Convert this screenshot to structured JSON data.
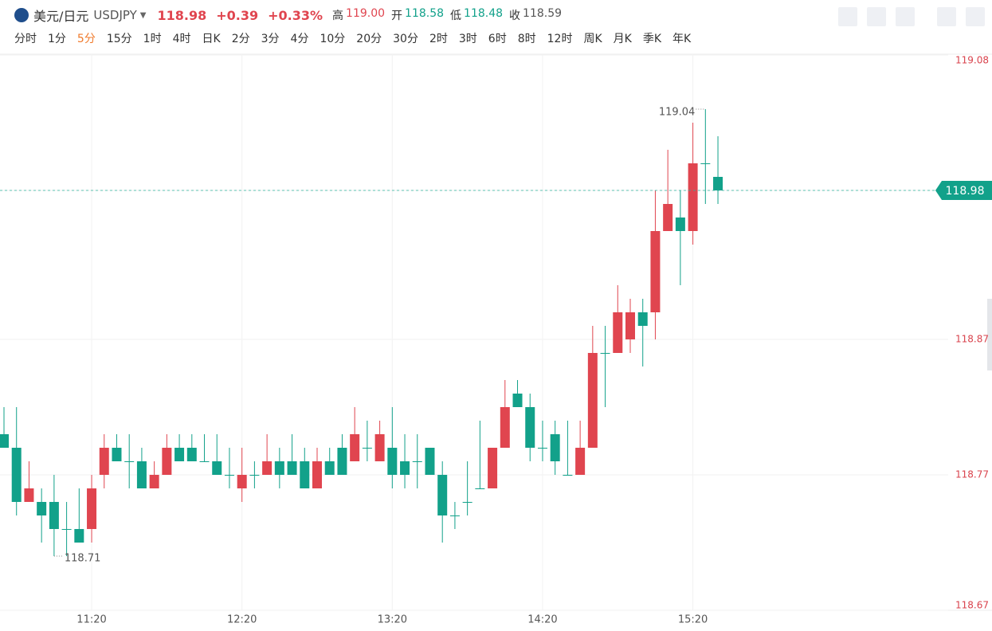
{
  "header": {
    "name": "美元/日元",
    "symbol": "USDJPY",
    "price": "118.98",
    "change": "+0.39",
    "change_pct": "+0.33%",
    "stats": [
      {
        "label": "高",
        "value": "119.00",
        "color": "#e0454f"
      },
      {
        "label": "开",
        "value": "118.58",
        "color": "#12a18a"
      },
      {
        "label": "低",
        "value": "118.48",
        "color": "#12a18a"
      },
      {
        "label": "收",
        "value": "118.59",
        "color": "#555555"
      }
    ]
  },
  "periods": [
    "分时",
    "1分",
    "5分",
    "15分",
    "1时",
    "4时",
    "日K",
    "2分",
    "3分",
    "4分",
    "10分",
    "20分",
    "30分",
    "2时",
    "3时",
    "6时",
    "8时",
    "12时",
    "周K",
    "月K",
    "季K",
    "年K"
  ],
  "active_period": "5分",
  "chart_data": {
    "type": "candlestick",
    "up_color": "#e0454f",
    "down_color": "#12a18a",
    "categories": [
      null,
      null,
      null,
      null,
      null,
      null,
      null,
      "11:20",
      null,
      null,
      null,
      null,
      null,
      null,
      null,
      null,
      null,
      null,
      null,
      "12:20",
      null,
      null,
      null,
      null,
      null,
      null,
      null,
      null,
      null,
      null,
      null,
      "13:20",
      null,
      null,
      null,
      null,
      null,
      null,
      null,
      null,
      null,
      null,
      null,
      "14:20",
      null,
      null,
      null,
      null,
      null,
      null,
      null,
      null,
      null,
      null,
      null,
      "15:20",
      null,
      null
    ],
    "open": [
      118.8,
      118.79,
      118.75,
      118.75,
      118.75,
      118.73,
      118.73,
      118.73,
      118.77,
      118.79,
      118.78,
      118.78,
      118.76,
      118.77,
      118.79,
      118.79,
      118.78,
      118.78,
      118.77,
      118.76,
      118.77,
      118.77,
      118.78,
      118.78,
      118.78,
      118.76,
      118.78,
      118.79,
      118.78,
      118.79,
      118.78,
      118.79,
      118.78,
      118.78,
      118.79,
      118.77,
      118.74,
      118.75,
      118.76,
      118.76,
      118.79,
      118.83,
      118.82,
      118.79,
      118.8,
      118.77,
      118.77,
      118.79,
      118.86,
      118.86,
      118.87,
      118.89,
      118.89,
      118.95,
      118.96,
      118.95,
      119.0,
      118.99
    ],
    "high": [
      118.82,
      118.82,
      118.78,
      118.76,
      118.77,
      118.75,
      118.76,
      118.77,
      118.8,
      118.8,
      118.8,
      118.79,
      118.78,
      118.8,
      118.8,
      118.8,
      118.8,
      118.8,
      118.79,
      118.79,
      118.78,
      118.8,
      118.79,
      118.8,
      118.79,
      118.79,
      118.79,
      118.8,
      118.82,
      118.81,
      118.81,
      118.82,
      118.8,
      118.8,
      118.79,
      118.78,
      118.75,
      118.78,
      118.81,
      118.79,
      118.84,
      118.84,
      118.83,
      118.81,
      118.81,
      118.81,
      118.81,
      118.88,
      118.88,
      118.91,
      118.9,
      118.9,
      118.98,
      119.01,
      118.98,
      119.03,
      119.04,
      119.02
    ],
    "low": [
      118.79,
      118.74,
      118.75,
      118.72,
      118.71,
      118.71,
      118.72,
      118.72,
      118.76,
      118.78,
      118.76,
      118.76,
      118.76,
      118.77,
      118.78,
      118.78,
      118.78,
      118.77,
      118.76,
      118.75,
      118.76,
      118.77,
      118.76,
      118.77,
      118.76,
      118.76,
      118.77,
      118.77,
      118.78,
      118.78,
      118.78,
      118.76,
      118.76,
      118.76,
      118.77,
      118.72,
      118.73,
      118.74,
      118.76,
      118.76,
      118.79,
      118.82,
      118.78,
      118.78,
      118.77,
      118.77,
      118.77,
      118.79,
      118.82,
      118.86,
      118.86,
      118.85,
      118.87,
      118.95,
      118.91,
      118.94,
      118.97,
      118.97
    ],
    "close": [
      118.79,
      118.75,
      118.76,
      118.74,
      118.73,
      118.73,
      118.72,
      118.76,
      118.79,
      118.78,
      118.78,
      118.76,
      118.77,
      118.79,
      118.78,
      118.78,
      118.78,
      118.77,
      118.77,
      118.77,
      118.77,
      118.78,
      118.77,
      118.77,
      118.76,
      118.78,
      118.77,
      118.77,
      118.8,
      118.79,
      118.8,
      118.77,
      118.77,
      118.78,
      118.77,
      118.74,
      118.74,
      118.75,
      118.76,
      118.79,
      118.82,
      118.82,
      118.79,
      118.79,
      118.78,
      118.77,
      118.79,
      118.86,
      118.86,
      118.89,
      118.89,
      118.88,
      118.95,
      118.97,
      118.95,
      119.0,
      119.0,
      118.98
    ],
    "ylim": [
      118.67,
      119.08
    ],
    "yticks": [
      118.67,
      118.77,
      118.87,
      118.98,
      119.08
    ],
    "grid": true
  }
}
